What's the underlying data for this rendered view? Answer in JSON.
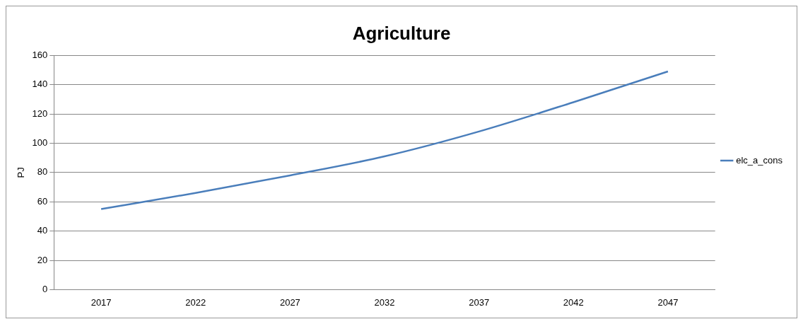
{
  "chart_data": {
    "type": "line",
    "title": "Agriculture",
    "ylabel": "PJ",
    "categories": [
      "2017",
      "2022",
      "2027",
      "2032",
      "2037",
      "2042",
      "2047"
    ],
    "series": [
      {
        "name": "elc_a_cons",
        "color": "#4a7ebb",
        "values": [
          55,
          66,
          78,
          91,
          108,
          128,
          149
        ]
      }
    ],
    "ylim": [
      0,
      160
    ],
    "yticks": [
      0,
      20,
      40,
      60,
      80,
      100,
      120,
      140,
      160
    ],
    "grid": "y",
    "legend": "right",
    "marker": "none",
    "line_style": "solid"
  }
}
